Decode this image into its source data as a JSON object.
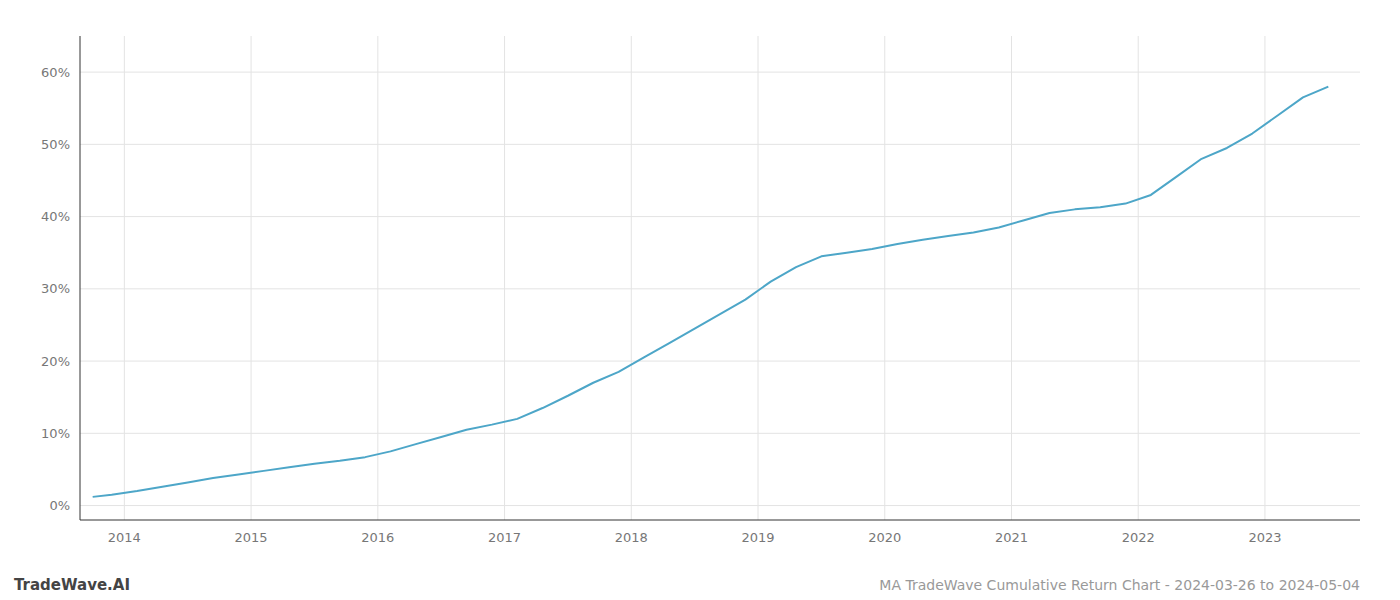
{
  "chart_data": {
    "type": "line",
    "title": "MA TradeWave Cumulative Return Chart - 2024-03-26 to 2024-05-04",
    "annotations": [
      "TradeWave.AI"
    ],
    "color": "#4da6c8",
    "grid": true,
    "x": [
      2013.75,
      2013.9,
      2014.1,
      2014.3,
      2014.5,
      2014.7,
      2014.9,
      2015.1,
      2015.3,
      2015.5,
      2015.7,
      2015.9,
      2016.1,
      2016.3,
      2016.5,
      2016.7,
      2016.9,
      2017.1,
      2017.3,
      2017.5,
      2017.7,
      2017.9,
      2018.1,
      2018.3,
      2018.5,
      2018.7,
      2018.9,
      2019.1,
      2019.3,
      2019.5,
      2019.7,
      2019.9,
      2020.1,
      2020.3,
      2020.5,
      2020.7,
      2020.9,
      2021.1,
      2021.3,
      2021.5,
      2021.7,
      2021.9,
      2022.1,
      2022.3,
      2022.5,
      2022.7,
      2022.9,
      2023.1,
      2023.3,
      2023.5
    ],
    "values": [
      1.2,
      1.5,
      2.0,
      2.6,
      3.2,
      3.8,
      4.3,
      4.8,
      5.3,
      5.8,
      6.2,
      6.7,
      7.5,
      8.5,
      9.5,
      10.5,
      11.2,
      12.0,
      13.5,
      15.2,
      17.0,
      18.5,
      20.5,
      22.5,
      24.5,
      26.5,
      28.5,
      31.0,
      33.0,
      34.5,
      35.0,
      35.5,
      36.2,
      36.8,
      37.3,
      37.8,
      38.5,
      39.5,
      40.5,
      41.0,
      41.3,
      41.8,
      43.0,
      45.5,
      48.0,
      49.5,
      51.5,
      54.0,
      56.5,
      58.0
    ],
    "xlim": [
      2013.65,
      2023.75
    ],
    "xticks": [
      2014,
      2015,
      2016,
      2017,
      2018,
      2019,
      2020,
      2021,
      2022,
      2023
    ],
    "ylim": [
      -2,
      65
    ],
    "yticks": [
      {
        "value": 0,
        "label": "0%"
      },
      {
        "value": 10,
        "label": "10%"
      },
      {
        "value": 20,
        "label": "20%"
      },
      {
        "value": 30,
        "label": "30%"
      },
      {
        "value": 40,
        "label": "40%"
      },
      {
        "value": 50,
        "label": "50%"
      },
      {
        "value": 60,
        "label": "60%"
      }
    ]
  }
}
